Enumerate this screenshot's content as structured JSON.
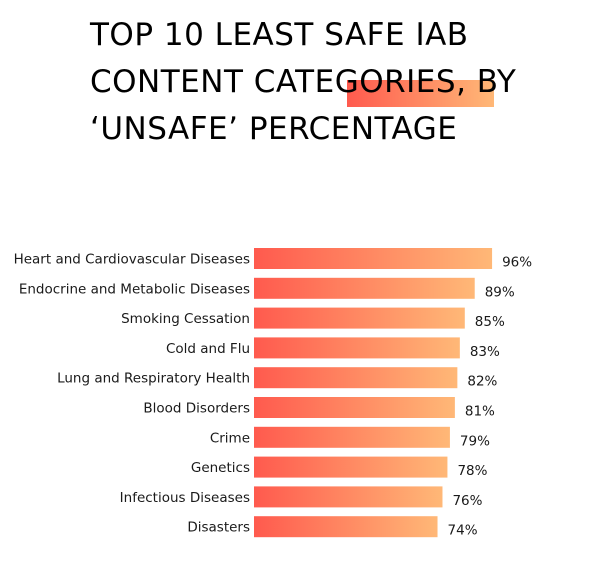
{
  "chart_data": {
    "type": "bar",
    "orientation": "horizontal",
    "title": "TOP 10 LEAST SAFE IAB CONTENT CATEGORIES, BY ‘UNSAFE’ PERCENTAGE",
    "categories": [
      "Heart and Cardiovascular Diseases",
      "Endocrine and Metabolic Diseases",
      "Smoking Cessation",
      "Cold and Flu",
      "Lung and Respiratory Health",
      "Blood Disorders",
      "Crime",
      "Genetics",
      "Infectious Diseases",
      "Disasters"
    ],
    "values": [
      96,
      89,
      85,
      83,
      82,
      81,
      79,
      78,
      76,
      74
    ],
    "value_labels": [
      "96%",
      "89%",
      "85%",
      "83%",
      "82%",
      "81%",
      "79%",
      "78%",
      "76%",
      "74%"
    ],
    "unit": "%",
    "xlim": [
      0,
      100
    ],
    "grid": false,
    "legend": "none",
    "colors": {
      "gradient_start": "#ff5a4e",
      "gradient_end": "#ffb877"
    }
  }
}
